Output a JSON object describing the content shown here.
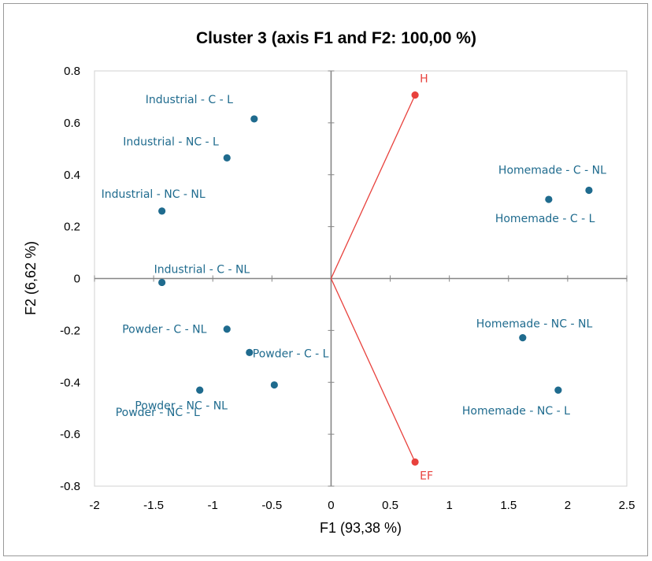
{
  "chart_data": {
    "type": "scatter",
    "title": "Cluster 3 (axis F1 and F2: 100,00 %)",
    "xlabel": "F1 (93,38 %)",
    "ylabel": "F2 (6,62 %)",
    "xlim": [
      -2,
      2.5
    ],
    "ylim": [
      -0.8,
      0.8
    ],
    "x_ticks": [
      "-2",
      "-1.5",
      "-1",
      "-0.5",
      "0",
      "0.5",
      "1",
      "1.5",
      "2",
      "2.5"
    ],
    "y_ticks": [
      "0.8",
      "0.6",
      "0.4",
      "0.2",
      "0",
      "-0.2",
      "-0.4",
      "-0.6",
      "-0.8"
    ],
    "grid": false,
    "colors": {
      "observations": "#1f6b8e",
      "variables": "#e8413c"
    },
    "series": [
      {
        "points": [
          {
            "label": "Industrial - C - L",
            "x": -0.65,
            "y": 0.615
          },
          {
            "label": "Industrial - NC - L",
            "x": -0.88,
            "y": 0.465
          },
          {
            "label": "Industrial - NC - NL",
            "x": -1.43,
            "y": 0.26
          },
          {
            "label": "Industrial - C - NL",
            "x": -1.43,
            "y": -0.015
          },
          {
            "label": "Powder - C - NL",
            "x": -0.88,
            "y": -0.195
          },
          {
            "label": "Powder - C - L",
            "x": -0.69,
            "y": -0.285
          },
          {
            "label": "Powder - NC - L",
            "x": -1.11,
            "y": -0.43
          },
          {
            "label": "Powder - NC - NL",
            "x": -0.48,
            "y": -0.41
          },
          {
            "label": "Homemade - C - NL",
            "x": 2.18,
            "y": 0.34
          },
          {
            "label": "Homemade - C - L",
            "x": 1.84,
            "y": 0.305
          },
          {
            "label": "Homemade - NC  - NL",
            "x": 1.62,
            "y": -0.228
          },
          {
            "label": "Homemade - NC - L",
            "x": 1.92,
            "y": -0.43
          }
        ]
      },
      {
        "points": [
          {
            "label": "H",
            "x": 0.71,
            "y": 0.707
          },
          {
            "label": "EF",
            "x": 0.71,
            "y": -0.707
          }
        ]
      }
    ]
  }
}
